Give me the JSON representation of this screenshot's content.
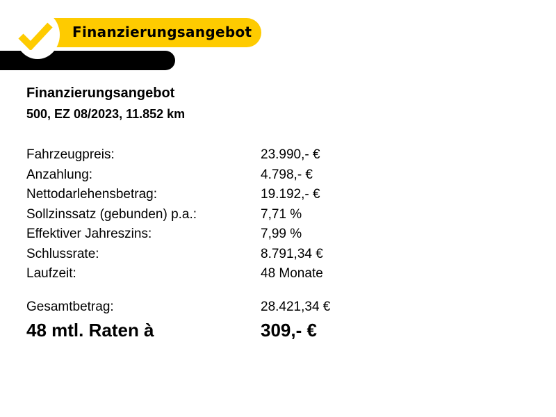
{
  "header": {
    "badge_label": "Finanzierungsangebot",
    "accent": "#fecb00",
    "icon": "checkmark-icon"
  },
  "title": "Finanzierungsangebot",
  "subtitle": "500, EZ 08/2023, 11.852 km",
  "rows": [
    {
      "label": "Fahrzeugpreis:",
      "value": "23.990,- €"
    },
    {
      "label": "Anzahlung:",
      "value": "4.798,- €"
    },
    {
      "label": "Nettodarlehensbetrag:",
      "value": "19.192,- €"
    },
    {
      "label": "Sollzinssatz (gebunden) p.a.:",
      "value": "7,71 %"
    },
    {
      "label": "Effektiver Jahreszins:",
      "value": "7,99 %"
    },
    {
      "label": "Schlussrate:",
      "value": "8.791,34 €"
    },
    {
      "label": "Laufzeit:",
      "value": "48 Monate"
    }
  ],
  "total": {
    "label": "Gesamtbetrag:",
    "value": "28.421,34 €"
  },
  "rate": {
    "label": "48 mtl. Raten à",
    "value": "309,- €"
  }
}
